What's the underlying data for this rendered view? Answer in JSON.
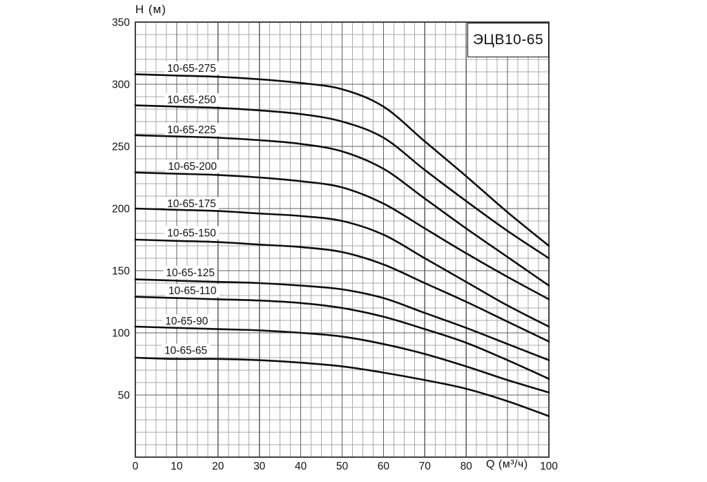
{
  "page": {
    "background": "#ffffff"
  },
  "title_box": {
    "label": "ЭЦВ10-65"
  },
  "chart_data": {
    "type": "line",
    "title": "ЭЦВ10-65",
    "xlabel": "Q (м³/ч)",
    "ylabel": "H (м)",
    "xlim": [
      0,
      100
    ],
    "ylim": [
      0,
      350
    ],
    "grid": true,
    "x_minor_step": 2.5,
    "x_major_step": 10,
    "y_minor_step": 10,
    "y_major_step": 50,
    "x_ticks": [
      0,
      10,
      20,
      30,
      40,
      50,
      60,
      70,
      80,
      100
    ],
    "xlabel_at_tick": 90,
    "y_ticks": [
      50,
      100,
      150,
      200,
      250,
      300,
      350
    ],
    "legend_position": "inline-curve-labels",
    "x": [
      0,
      10,
      20,
      30,
      40,
      50,
      60,
      70,
      80,
      90,
      100
    ],
    "series": [
      {
        "name": "10-65-275",
        "values": [
          308,
          307,
          306,
          304,
          301,
          296,
          282,
          254,
          226,
          197,
          170
        ],
        "label_q": 13.6,
        "label_h": 313
      },
      {
        "name": "10-65-250",
        "values": [
          283,
          282,
          281,
          279,
          276,
          270,
          257,
          231,
          206,
          182,
          160
        ],
        "label_q": 13.6,
        "label_h": 287.5
      },
      {
        "name": "10-65-225",
        "values": [
          259,
          258,
          257,
          255,
          252,
          246,
          232,
          208,
          184,
          161,
          138
        ],
        "label_q": 13.6,
        "label_h": 263.5
      },
      {
        "name": "10-65-200",
        "values": [
          229,
          228,
          227,
          225,
          222,
          217,
          204,
          184,
          164,
          145,
          127
        ],
        "label_q": 13.8,
        "label_h": 234
      },
      {
        "name": "10-65-175",
        "values": [
          200,
          199,
          198,
          196,
          194,
          190,
          179,
          160,
          141,
          122,
          105
        ],
        "label_q": 13.6,
        "label_h": 204
      },
      {
        "name": "10-65-150",
        "values": [
          175,
          174,
          173,
          171,
          169,
          165,
          155,
          140,
          125,
          109,
          93
        ],
        "label_q": 13.6,
        "label_h": 180.5
      },
      {
        "name": "10-65-125",
        "values": [
          143,
          142,
          141,
          140,
          138,
          135,
          128,
          116,
          104,
          91,
          78
        ],
        "label_q": 13.3,
        "label_h": 148.5
      },
      {
        "name": "10-65-110",
        "values": [
          129,
          128,
          127,
          126,
          124,
          120,
          113,
          103,
          92,
          78,
          63
        ],
        "label_q": 13.8,
        "label_h": 134
      },
      {
        "name": "10-65-90",
        "values": [
          105,
          104,
          103,
          102,
          100,
          97,
          91,
          83,
          73,
          62,
          52
        ],
        "label_q": 12.4,
        "label_h": 109.5
      },
      {
        "name": "10-65-65",
        "values": [
          80,
          79,
          79,
          78,
          76,
          73,
          68,
          62,
          55,
          45,
          33
        ],
        "label_q": 12.2,
        "label_h": 86
      }
    ],
    "colors": {
      "curve": "#0d0d0d",
      "grid_minor": "#a8a8a8",
      "grid_major": "#5c5c5c",
      "frame": "#3f3f3f",
      "text": "#111111",
      "label_bg": "#ffffff"
    }
  }
}
